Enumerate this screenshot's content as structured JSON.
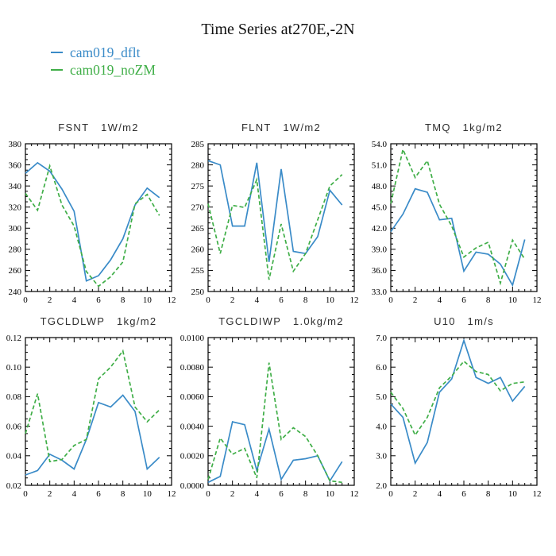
{
  "page": {
    "title": "Time Series at270E,-2N",
    "background": "#ffffff"
  },
  "legend": {
    "items": [
      {
        "label": "cam019_dflt",
        "color": "#3a8bc8",
        "style": "solid"
      },
      {
        "label": "cam019_noZM",
        "color": "#3fae47",
        "style": "dashed"
      }
    ]
  },
  "axes": {
    "xlim": [
      0,
      12
    ],
    "xticks": [
      "0",
      "2",
      "4",
      "6",
      "8",
      "10",
      "12"
    ],
    "x_major_step": 2,
    "x_minor_step": 0.5,
    "grid": "off",
    "tick_direction": "in"
  },
  "chart_data": [
    {
      "type": "line",
      "title": "FSNT",
      "units": "1W/m2",
      "xlim": [
        0,
        12
      ],
      "ylim": [
        240,
        380
      ],
      "ytick_step": 20,
      "yticks": [
        "380",
        "360",
        "340",
        "320",
        "300",
        "280",
        "260",
        "240"
      ],
      "x": [
        0,
        1,
        2,
        3,
        4,
        5,
        6,
        7,
        8,
        9,
        10,
        11
      ],
      "series": [
        {
          "name": "cam019_dflt",
          "color": "#3a8bc8",
          "dashed": false,
          "values": [
            352,
            362,
            354,
            337,
            316,
            250,
            255,
            270,
            290,
            322,
            338,
            329
          ]
        },
        {
          "name": "cam019_noZM",
          "color": "#3fae47",
          "dashed": true,
          "values": [
            333,
            317,
            359,
            322,
            302,
            259,
            245,
            254,
            268,
            323,
            332,
            312
          ]
        }
      ]
    },
    {
      "type": "line",
      "title": "FLNT",
      "units": "1W/m2",
      "xlim": [
        0,
        12
      ],
      "ylim": [
        250,
        285
      ],
      "ytick_step": 5,
      "yticks": [
        "285",
        "280",
        "275",
        "270",
        "265",
        "260",
        "255",
        "250"
      ],
      "x": [
        0,
        1,
        2,
        3,
        4,
        5,
        6,
        7,
        8,
        9,
        10,
        11
      ],
      "series": [
        {
          "name": "cam019_dflt",
          "color": "#3a8bc8",
          "dashed": false,
          "values": [
            281,
            280,
            265.5,
            265.5,
            280.5,
            257,
            279,
            259.5,
            259,
            263,
            274,
            270.5
          ]
        },
        {
          "name": "cam019_noZM",
          "color": "#3fae47",
          "dashed": true,
          "values": [
            270.8,
            259,
            270.4,
            269.9,
            276.5,
            252.8,
            266,
            254.8,
            259,
            267,
            275,
            277.7
          ]
        }
      ]
    },
    {
      "type": "line",
      "title": "TMQ",
      "units": "1kg/m2",
      "xlim": [
        0,
        12
      ],
      "ylim": [
        33,
        54
      ],
      "ytick_step": 3,
      "yticks": [
        "54.0",
        "51.0",
        "48.0",
        "45.0",
        "42.0",
        "39.0",
        "36.0",
        "33.0"
      ],
      "x": [
        0,
        1,
        2,
        3,
        4,
        5,
        6,
        7,
        8,
        9,
        10,
        11
      ],
      "series": [
        {
          "name": "cam019_dflt",
          "color": "#3a8bc8",
          "dashed": false,
          "values": [
            41.5,
            44.0,
            47.6,
            47.1,
            43.2,
            43.4,
            35.9,
            38.6,
            38.3,
            36.9,
            33.9,
            40.4
          ]
        },
        {
          "name": "cam019_noZM",
          "color": "#3fae47",
          "dashed": true,
          "values": [
            45.5,
            53.2,
            49.2,
            51.6,
            45.4,
            42.3,
            37.9,
            39.2,
            40.0,
            34.2,
            40.3,
            37.6
          ]
        }
      ]
    },
    {
      "type": "line",
      "title": "TGCLDLWP",
      "units": "1kg/m2",
      "xlim": [
        0,
        12
      ],
      "ylim": [
        0.02,
        0.12
      ],
      "ytick_step": 0.02,
      "yticks": [
        "0.12",
        "0.10",
        "0.08",
        "0.06",
        "0.04",
        "0.02"
      ],
      "x": [
        0,
        1,
        2,
        3,
        4,
        5,
        6,
        7,
        8,
        9,
        10,
        11
      ],
      "series": [
        {
          "name": "cam019_dflt",
          "color": "#3a8bc8",
          "dashed": false,
          "values": [
            0.027,
            0.03,
            0.041,
            0.037,
            0.031,
            0.051,
            0.076,
            0.073,
            0.081,
            0.07,
            0.031,
            0.039
          ]
        },
        {
          "name": "cam019_noZM",
          "color": "#3fae47",
          "dashed": true,
          "values": [
            0.055,
            0.082,
            0.036,
            0.0375,
            0.047,
            0.051,
            0.092,
            0.1,
            0.111,
            0.073,
            0.063,
            0.071
          ]
        }
      ]
    },
    {
      "type": "line",
      "title": "TGCLDIWP",
      "units": "1.0kg/m2",
      "xlim": [
        0,
        12
      ],
      "ylim": [
        0.0,
        0.01
      ],
      "ytick_step": 0.002,
      "yticks": [
        "0.0100",
        "0.0080",
        "0.0060",
        "0.0040",
        "0.0020",
        "0.0000"
      ],
      "x": [
        0,
        1,
        2,
        3,
        4,
        5,
        6,
        7,
        8,
        9,
        10,
        11
      ],
      "series": [
        {
          "name": "cam019_dflt",
          "color": "#3a8bc8",
          "dashed": false,
          "values": [
            0.0002,
            0.0006,
            0.0043,
            0.0041,
            0.001,
            0.0038,
            0.0004,
            0.0017,
            0.0018,
            0.002,
            0.0003,
            0.0016
          ]
        },
        {
          "name": "cam019_noZM",
          "color": "#3fae47",
          "dashed": true,
          "values": [
            0.0004,
            0.0032,
            0.0021,
            0.0025,
            0.0005,
            0.0083,
            0.0031,
            0.0039,
            0.0033,
            0.002,
            0.0003,
            0.0002
          ]
        }
      ]
    },
    {
      "type": "line",
      "title": "U10",
      "units": "1m/s",
      "xlim": [
        0,
        12
      ],
      "ylim": [
        2,
        7
      ],
      "ytick_step": 1,
      "yticks": [
        "7.0",
        "6.0",
        "5.0",
        "4.0",
        "3.0",
        "2.0"
      ],
      "x": [
        0,
        1,
        2,
        3,
        4,
        5,
        6,
        7,
        8,
        9,
        10,
        11
      ],
      "series": [
        {
          "name": "cam019_dflt",
          "color": "#3a8bc8",
          "dashed": false,
          "values": [
            4.75,
            4.3,
            2.75,
            3.45,
            5.15,
            5.6,
            6.9,
            5.65,
            5.45,
            5.65,
            4.85,
            5.35
          ]
        },
        {
          "name": "cam019_noZM",
          "color": "#3fae47",
          "dashed": true,
          "values": [
            5.15,
            4.6,
            3.7,
            4.3,
            5.3,
            5.7,
            6.2,
            5.85,
            5.75,
            5.2,
            5.45,
            5.5
          ]
        }
      ]
    }
  ]
}
